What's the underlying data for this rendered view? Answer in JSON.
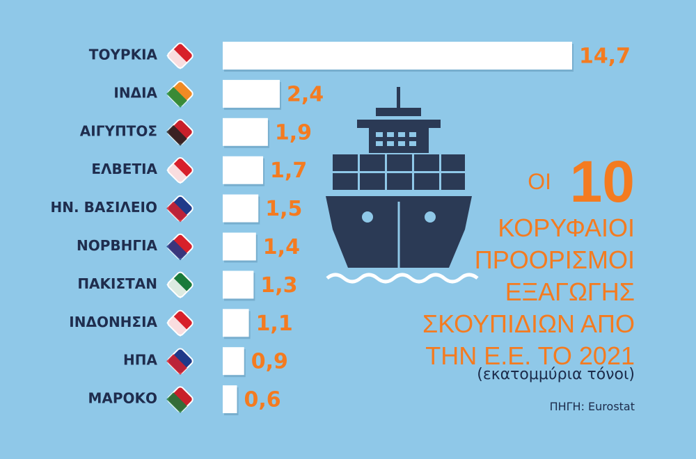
{
  "chart_data": {
    "type": "bar",
    "orientation": "horizontal",
    "title": {
      "lead": "ΟΙ",
      "number": "10",
      "lines": [
        "ΚΟΡΥΦΑΙΟΙ",
        "ΠΡΟΟΡΙΣΜΟΙ",
        "ΕΞΑΓΩΓΗΣ",
        "ΣΚΟΥΠΙΔΙΩΝ ΑΠΟ",
        "ΤΗΝ Ε.Ε. ΤΟ 2021"
      ]
    },
    "subtitle": "(εκατομμύρια τόνοι)",
    "source": "ΠΗΓΗ: Eurostat",
    "categories": [
      "ΤΟΥΡΚΙΑ",
      "ΙΝΔΙΑ",
      "ΑΙΓΥΠΤΟΣ",
      "ΕΛΒΕΤΙΑ",
      "ΗΝ. ΒΑΣΙΛΕΙΟ",
      "ΝΟΡΒΗΓΙΑ",
      "ΠΑΚΙΣΤΑΝ",
      "ΙΝΔΟΝΗΣΙΑ",
      "ΗΠΑ",
      "ΜΑΡΟΚΟ"
    ],
    "values": [
      14.7,
      2.4,
      1.9,
      1.7,
      1.5,
      1.4,
      1.3,
      1.1,
      0.9,
      0.6
    ],
    "value_labels": [
      "14,7",
      "2,4",
      "1,9",
      "1,7",
      "1,5",
      "1,4",
      "1,3",
      "1,1",
      "0,9",
      "0,6"
    ],
    "color": "#ffffff",
    "label_color": "#f47b20"
  }
}
